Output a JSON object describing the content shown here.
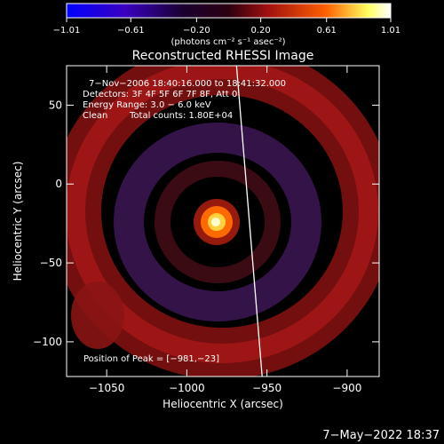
{
  "chart_data": {
    "type": "heatmap",
    "title": "Reconstructed RHESSI Image",
    "xlabel": "Heliocentric X (arcsec)",
    "ylabel": "Heliocentric Y (arcsec)",
    "xlim": [
      -1075,
      -880
    ],
    "ylim": [
      -122,
      75
    ],
    "x_ticks": [
      -1050,
      -1000,
      -950,
      -900
    ],
    "x_tick_labels": [
      "−1050",
      "−1000",
      "−950",
      "−900"
    ],
    "y_ticks": [
      -100,
      -50,
      0,
      50
    ],
    "y_tick_labels": [
      "−100",
      "−50",
      "0",
      "50"
    ],
    "colorbar": {
      "min": -1.01,
      "max": 1.01,
      "ticks": [
        -1.01,
        -0.61,
        -0.2,
        0.2,
        0.61,
        1.01
      ],
      "tick_labels": [
        "−1.01",
        "−0.61",
        "−0.20",
        "0.20",
        "0.61",
        "1.01"
      ],
      "unit_label": "(photons cm⁻² s⁻¹ asec⁻²)",
      "colors": [
        "#0000ff",
        "#4b0082",
        "#2a0015",
        "#a01010",
        "#ff6000",
        "#ffff80",
        "#ffffff"
      ]
    },
    "annotations": {
      "time_range": "7−Nov−2006 18:40:16.000 to 18:41:32.000",
      "detectors": "Detectors: 3F 4F 5F 6F 7F 8F, Att 0",
      "energy_range": "Energy Range: 3.0 − 6.0 keV",
      "algorithm": "Clean",
      "total_counts": "Total counts: 1.80E+04",
      "peak": "Position of Peak = [−981,−23]"
    },
    "peak": {
      "x": -981,
      "y": -23
    },
    "limb_line": {
      "x_top": -969,
      "x_bottom": -953
    }
  },
  "footer": {
    "date": "7−May−2022 18:37"
  }
}
